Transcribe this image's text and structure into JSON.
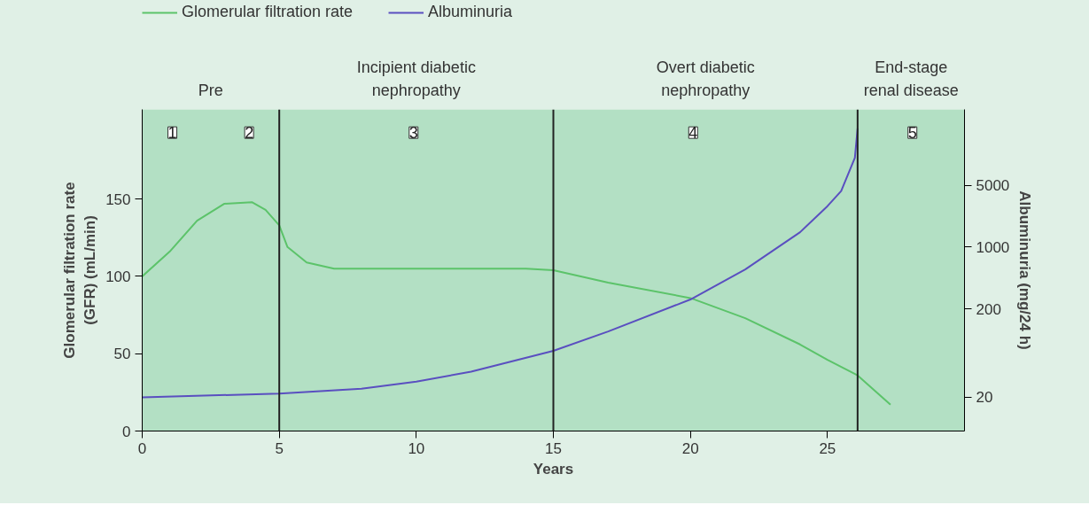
{
  "chart_data": {
    "type": "line",
    "xlabel": "Years",
    "ylabel": "Glomerular filtration rate\n(GFR) (mL/min)",
    "y2label": "Albuminuria (mg/24 h)",
    "xlim": [
      0,
      30
    ],
    "xticks": [
      0,
      5,
      10,
      15,
      20,
      25
    ],
    "ylim": [
      0,
      208
    ],
    "yticks": [
      0,
      50,
      100,
      150
    ],
    "y2lim": [
      8.3,
      36000
    ],
    "y2ticks": [
      20,
      200,
      1000,
      5000
    ],
    "log": "y2",
    "series": [
      {
        "name": "Glomerular filtration rate",
        "color": "#5cc36a",
        "x": [
          0,
          1,
          2,
          3,
          4,
          4.5,
          5,
          5.3,
          6,
          7,
          14,
          15,
          17,
          20,
          22,
          24,
          25,
          26.1,
          27.3
        ],
        "values": [
          100,
          116,
          136,
          147,
          148,
          143,
          133,
          119,
          109,
          105,
          105,
          104,
          96,
          86,
          73,
          56,
          46,
          36,
          17
        ]
      },
      {
        "name": "Albuminuria",
        "color": "#5a4fc0",
        "axis": "y2",
        "x": [
          0,
          5,
          8,
          10,
          12,
          15,
          17,
          20,
          22,
          24,
          25,
          25.5,
          26,
          26.1
        ],
        "values": [
          20,
          22,
          25,
          30,
          39,
          67,
          111,
          255,
          558,
          1470,
          2900,
          4300,
          10200,
          22000
        ]
      }
    ],
    "ref_lines": [
      {
        "axis": "x",
        "value": 5,
        "color": "#222222"
      },
      {
        "axis": "x",
        "value": 15,
        "color": "#222222"
      },
      {
        "axis": "x",
        "value": 26.1,
        "color": "#222222"
      }
    ],
    "bands": [
      {
        "axis": "x",
        "from": 0,
        "to": 5,
        "label": "Pre",
        "color": "#b3e0c4"
      },
      {
        "axis": "x",
        "from": 5,
        "to": 15,
        "label": "Incipient diabetic\nnephropathy",
        "color": "#b3e0c4"
      },
      {
        "axis": "x",
        "from": 15,
        "to": 26.1,
        "label": "Overt diabetic\nnephropathy",
        "color": "#b3e0c4"
      },
      {
        "axis": "x",
        "from": 26.1,
        "to": 30,
        "label": "End-stage\nrenal disease",
        "color": "#b3e0c4"
      }
    ],
    "annotations": [
      {
        "text": "1",
        "x": 1.1,
        "y": 193
      },
      {
        "text": "2",
        "x": 3.9,
        "y": 193
      },
      {
        "text": "3",
        "x": 9.9,
        "y": 193
      },
      {
        "text": "4",
        "x": 20.1,
        "y": 193
      },
      {
        "text": "5",
        "x": 28.1,
        "y": 193
      }
    ],
    "legend": "top left",
    "marker": "none",
    "line_style": "solid"
  }
}
